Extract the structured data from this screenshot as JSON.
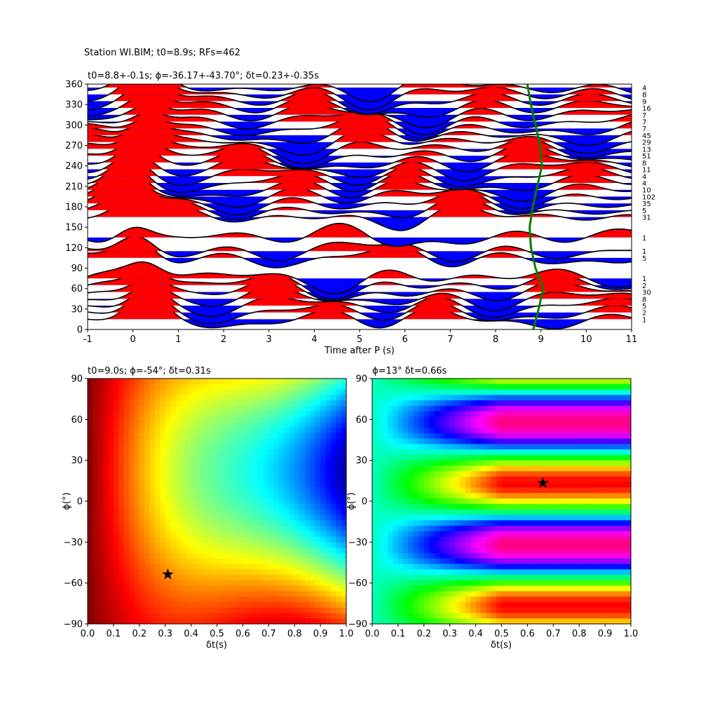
{
  "figure": {
    "suptitle": "Station WI.BIM; t0=8.9s; RFs=462"
  },
  "colors": {
    "positive_fill": "#ff0000",
    "negative_fill": "#0000ff",
    "trace_line": "#000000",
    "t0_curve": "#008000",
    "marker": "#000000"
  },
  "chart_data": [
    {
      "type": "line",
      "panel": "stacked receiver functions",
      "title": "t0=8.8+-0.1s; ϕ=-36.17+-43.70°; δt=0.23+-0.35s",
      "xlabel": "Time after P (s)",
      "ylabel": "",
      "xlim": [
        -1,
        11
      ],
      "ylim": [
        0,
        360
      ],
      "xticks": [
        "-1",
        "0",
        "1",
        "2",
        "3",
        "4",
        "5",
        "6",
        "7",
        "8",
        "9",
        "10",
        "11"
      ],
      "yticks": [
        "0",
        "30",
        "60",
        "90",
        "120",
        "150",
        "180",
        "210",
        "240",
        "270",
        "300",
        "330",
        "360"
      ],
      "grid": false,
      "fill_positive": "red",
      "fill_negative": "blue",
      "back_azimuths": [
        15,
        25,
        35,
        45,
        55,
        65,
        75,
        105,
        115,
        135,
        165,
        175,
        185,
        195,
        205,
        215,
        225,
        235,
        245,
        255,
        265,
        275,
        285,
        295,
        305,
        315,
        325,
        335,
        345,
        355
      ],
      "trace_counts": [
        "1",
        "2",
        "5",
        "8",
        "30",
        "2",
        "1",
        "5",
        "1",
        "1",
        "31",
        "5",
        "35",
        "102",
        "10",
        "4",
        "4",
        "11",
        "8",
        "51",
        "13",
        "29",
        "45",
        "7",
        "7",
        "7",
        "16",
        "9",
        "8",
        "4"
      ],
      "t0_curve": {
        "name": "t0",
        "baz": [
          0,
          30,
          60,
          90,
          120,
          150,
          180,
          210,
          240,
          270,
          300,
          330,
          360
        ],
        "time": [
          8.83,
          8.95,
          9.05,
          8.88,
          8.78,
          8.75,
          8.82,
          8.92,
          9.02,
          8.98,
          8.88,
          8.78,
          8.7
        ]
      }
    },
    {
      "type": "heatmap",
      "panel": "grid search 1",
      "title": "t0=9.0s; ϕ=-54°; δt=0.31s",
      "xlabel": "δt(s)",
      "ylabel": "ϕ(°)",
      "xlim": [
        0.0,
        1.0
      ],
      "ylim": [
        -90,
        90
      ],
      "xticks": [
        "0.0",
        "0.1",
        "0.2",
        "0.3",
        "0.4",
        "0.5",
        "0.6",
        "0.7",
        "0.8",
        "0.9",
        "1.0"
      ],
      "yticks": [
        "−90",
        "−60",
        "−30",
        "0",
        "30",
        "60",
        "90"
      ],
      "colormap": "jet",
      "best": {
        "dt": 0.31,
        "phi": -54
      }
    },
    {
      "type": "heatmap",
      "panel": "grid search 2",
      "title": "ϕ=13° δt=0.66s",
      "xlabel": "δt(s)",
      "ylabel": "ϕ(°)",
      "xlim": [
        0.0,
        1.0
      ],
      "ylim": [
        -90,
        90
      ],
      "xticks": [
        "0.0",
        "0.1",
        "0.2",
        "0.3",
        "0.4",
        "0.5",
        "0.6",
        "0.7",
        "0.8",
        "0.9",
        "1.0"
      ],
      "yticks": [
        "−90",
        "−60",
        "−30",
        "0",
        "30",
        "60",
        "90"
      ],
      "colormap": "hsv",
      "best": {
        "dt": 0.66,
        "phi": 13
      }
    }
  ]
}
